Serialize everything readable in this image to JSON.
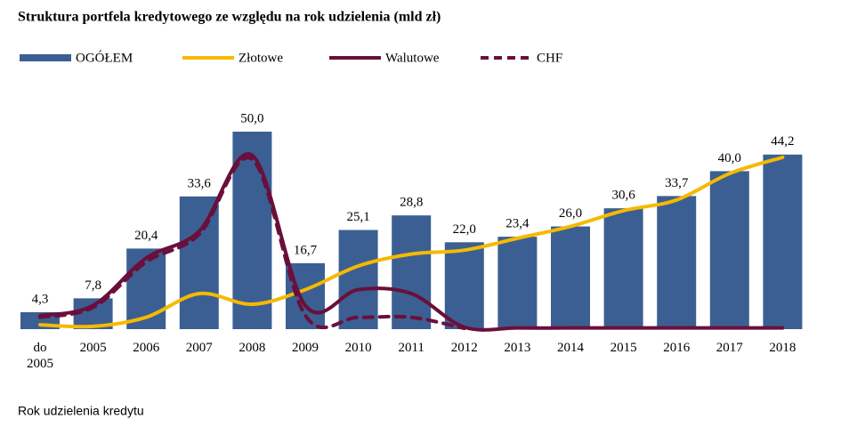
{
  "chart_data": {
    "type": "bar",
    "title": "Struktura portfela kredytowego ze względu na rok udzielenia  (mld zł)",
    "x_label": "Rok udzielenia kredytu",
    "categories": [
      "do 2005",
      "2005",
      "2006",
      "2007",
      "2008",
      "2009",
      "2010",
      "2011",
      "2012",
      "2013",
      "2014",
      "2015",
      "2016",
      "2017",
      "2018"
    ],
    "series": [
      {
        "name": "OGÓŁEM",
        "type": "bar",
        "color": "#3b5f92",
        "values": [
          4.3,
          7.8,
          20.4,
          33.6,
          50.0,
          16.7,
          25.1,
          28.8,
          22.0,
          23.4,
          26.0,
          30.6,
          33.7,
          40.0,
          44.2
        ],
        "value_labels": [
          "4,3",
          "7,8",
          "20,4",
          "33,6",
          "50,0",
          "16,7",
          "25,1",
          "28,8",
          "22,0",
          "23,4",
          "26,0",
          "30,6",
          "33,7",
          "40,0",
          "44,2"
        ]
      },
      {
        "name": "Złotowe",
        "type": "line",
        "color": "#f6b900",
        "dash": false,
        "values": [
          1.1,
          0.7,
          3,
          9,
          6.3,
          10,
          16,
          19,
          20,
          23,
          26,
          30,
          32.7,
          39.4,
          43.5
        ]
      },
      {
        "name": "Walutowe",
        "type": "line",
        "color": "#6a0f3b",
        "dash": false,
        "values": [
          3.4,
          6,
          18,
          24.8,
          44,
          6,
          10,
          9,
          0.5,
          0.3,
          0.3,
          0.3,
          0.3,
          0.3,
          0.3
        ]
      },
      {
        "name": "CHF",
        "type": "line",
        "color": "#6a0f3b",
        "dash": true,
        "values": [
          3,
          5.5,
          17,
          24,
          43,
          3.5,
          3,
          3,
          0.2,
          null,
          null,
          null,
          null,
          null,
          null
        ]
      }
    ]
  }
}
